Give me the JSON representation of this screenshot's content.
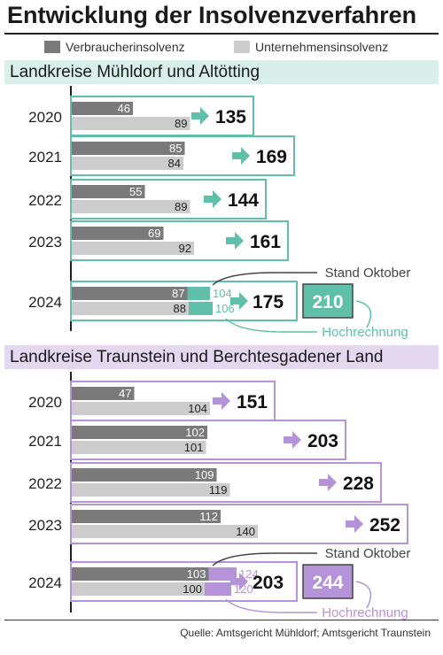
{
  "title": "Entwicklung der Insolvenzverfahren",
  "legend": [
    {
      "label": "Verbraucherinsolvenz",
      "color": "#7a7a7a"
    },
    {
      "label": "Unternehmensinsolvenz",
      "color": "#cccccc"
    }
  ],
  "source": "Quelle: Amtsgericht Mühldorf; Amtsgericht Traunstein",
  "sections": [
    {
      "header": "Landkreise Mühldorf und Altötting",
      "bg": "#d9efe9",
      "accent": "#5fbfa8"
    },
    {
      "header": "Landkreise Traunstein und Berchtesgadener Land",
      "bg": "#e4d8f0",
      "accent": "#b493d8"
    }
  ],
  "annotations": {
    "stand": "Stand Oktober",
    "hochrechnung": "Hochrechnung"
  },
  "chart_data": [
    {
      "type": "bar",
      "title": "Landkreise Mühldorf und Altötting",
      "categories": [
        "2020",
        "2021",
        "2022",
        "2023",
        "2024"
      ],
      "series": [
        {
          "name": "Verbraucherinsolvenz",
          "values": [
            46,
            85,
            55,
            69,
            87
          ]
        },
        {
          "name": "Unternehmensinsolvenz",
          "values": [
            89,
            84,
            89,
            92,
            88
          ]
        }
      ],
      "totals": [
        "135",
        "169",
        "144",
        "161",
        "175"
      ],
      "projection_2024": {
        "verbraucher": "104",
        "unternehmen": "106",
        "total": "210"
      }
    },
    {
      "type": "bar",
      "title": "Landkreise Traunstein und Berchtesgadener Land",
      "categories": [
        "2020",
        "2021",
        "2022",
        "2023",
        "2024"
      ],
      "series": [
        {
          "name": "Verbraucherinsolvenz",
          "values": [
            47,
            102,
            109,
            112,
            103
          ]
        },
        {
          "name": "Unternehmensinsolvenz",
          "values": [
            104,
            101,
            119,
            140,
            100
          ]
        }
      ],
      "totals": [
        "151",
        "203",
        "228",
        "252",
        "203"
      ],
      "projection_2024": {
        "verbraucher": "124",
        "unternehmen": "120",
        "total": "244"
      }
    }
  ]
}
